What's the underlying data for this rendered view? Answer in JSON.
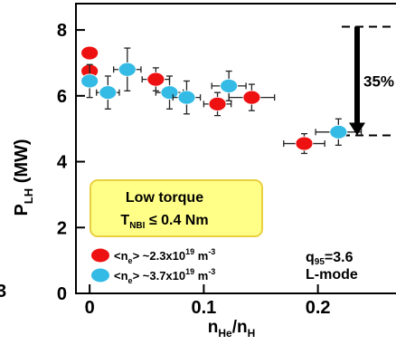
{
  "chart_data": {
    "type": "scatter",
    "x_ticks": [
      "0",
      "0.1",
      "0.2"
    ],
    "x_tick_values": [
      0,
      0.1,
      0.2
    ],
    "y_ticks": [
      "0",
      "2",
      "4",
      "6",
      "8"
    ],
    "y_tick_values": [
      0,
      2,
      4,
      6,
      8
    ],
    "xlim": [
      -0.012,
      0.27
    ],
    "ylim": [
      0,
      8.8
    ],
    "xlabel": {
      "main": "n",
      "sub1": "He",
      "mid": "/n",
      "sub2": "H"
    },
    "ylabel": {
      "main": "P",
      "sub": "LH",
      "tail": " (MW)"
    },
    "edge_label": "3",
    "series": [
      {
        "color": "#ee1111",
        "legend": {
          "pre": "<n",
          "sub": "e",
          "mid": "> ~2.3x10",
          "sup": "19",
          "tail": " m",
          "sup2": "-3"
        },
        "points": [
          {
            "x": 0.0,
            "y": 7.3,
            "xerr": 0,
            "yerr": 0
          },
          {
            "x": 0.0,
            "y": 6.75,
            "xerr": 0,
            "yerr": 0
          },
          {
            "x": 0.058,
            "y": 6.5,
            "xerr": 0.012,
            "yerr": 0.35
          },
          {
            "x": 0.112,
            "y": 5.75,
            "xerr": 0.012,
            "yerr": 0.35
          },
          {
            "x": 0.142,
            "y": 5.95,
            "xerr": 0.02,
            "yerr": 0.4
          },
          {
            "x": 0.188,
            "y": 4.55,
            "xerr": 0.018,
            "yerr": 0.3
          }
        ]
      },
      {
        "color": "#33bbe6",
        "legend": {
          "pre": "<n",
          "sub": "e",
          "mid": "> ~3.7x10",
          "sup": "19",
          "tail": " m",
          "sup2": "-3"
        },
        "points": [
          {
            "x": 0.0,
            "y": 6.45,
            "xerr": 0,
            "yerr": 0.5
          },
          {
            "x": 0.016,
            "y": 6.1,
            "xerr": 0.01,
            "yerr": 0.5
          },
          {
            "x": 0.033,
            "y": 6.8,
            "xerr": 0.012,
            "yerr": 0.65
          },
          {
            "x": 0.07,
            "y": 6.1,
            "xerr": 0.012,
            "yerr": 0.5
          },
          {
            "x": 0.085,
            "y": 5.95,
            "xerr": 0.012,
            "yerr": 0.5
          },
          {
            "x": 0.122,
            "y": 6.3,
            "xerr": 0.015,
            "yerr": 0.45
          },
          {
            "x": 0.218,
            "y": 4.9,
            "xerr": 0.02,
            "yerr": 0.4
          }
        ]
      }
    ],
    "annotations": {
      "torque_box": {
        "line1": "Low torque",
        "line2": {
          "pre": "T",
          "sub": "NBI",
          "tail": " ≤ 0.4 Nm"
        },
        "fill": "#ffff88",
        "border": "#e8d040"
      },
      "q95": {
        "pre": "q",
        "sub": "95",
        "tail": "=3.6"
      },
      "mode": "L-mode",
      "drop": {
        "label": "35%",
        "y_top": 8.1,
        "y_bottom": 4.8
      }
    }
  }
}
